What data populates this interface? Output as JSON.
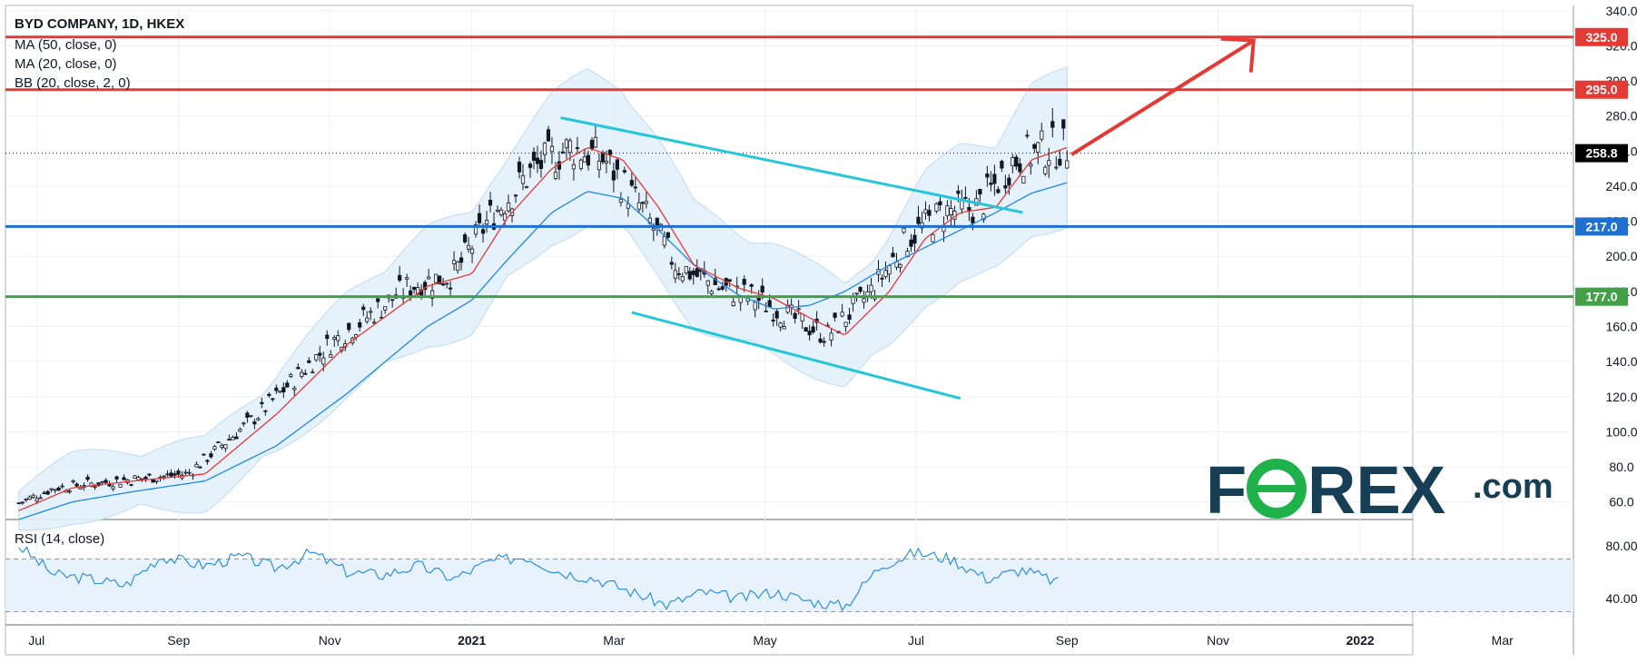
{
  "legend": {
    "title": "BYD COMPANY, 1D, HKEX",
    "ma50": "MA (50, close, 0)",
    "ma20": "MA (20, close, 0)",
    "bb": "BB (20, close, 2, 0)",
    "rsi": "RSI (14, close)"
  },
  "chart_data": [
    {
      "type": "line",
      "title": "BYD COMPANY, 1D, HKEX",
      "x_ticks": [
        "Jul",
        "Sep",
        "Nov",
        "2021",
        "Mar",
        "May",
        "Jul",
        "Sep",
        "Nov",
        "2022",
        "Mar"
      ],
      "y_ticks": [
        "340.0",
        "320.0",
        "300.0",
        "280.0",
        "260.0",
        "240.0",
        "220.0",
        "200.0",
        "180.0",
        "160.0",
        "140.0",
        "120.0",
        "100.0",
        "80.0",
        "60.0"
      ],
      "ylim": [
        50,
        343
      ],
      "horizontal_levels": [
        {
          "value": 325.0,
          "label": "325.0",
          "color": "#e53935"
        },
        {
          "value": 295.0,
          "label": "295.0",
          "color": "#e53935"
        },
        {
          "value": 217.0,
          "label": "217.0",
          "color": "#1e6fd0"
        },
        {
          "value": 177.0,
          "label": "177.0",
          "color": "#43a047"
        }
      ],
      "last_price": {
        "value": 258.8,
        "label": "258.8"
      },
      "series": [
        {
          "name": "MA (20, close, 0)",
          "color": "#e53935",
          "values": [
            [
              2020.49,
              55
            ],
            [
              2020.55,
              68
            ],
            [
              2020.62,
              72
            ],
            [
              2020.7,
              76
            ],
            [
              2020.78,
              110
            ],
            [
              2020.86,
              150
            ],
            [
              2020.95,
              183
            ],
            [
              2021.0,
              190
            ],
            [
              2021.04,
              222
            ],
            [
              2021.09,
              250
            ],
            [
              2021.13,
              262
            ],
            [
              2021.17,
              255
            ],
            [
              2021.21,
              228
            ],
            [
              2021.25,
              195
            ],
            [
              2021.3,
              182
            ],
            [
              2021.34,
              176
            ],
            [
              2021.38,
              165
            ],
            [
              2021.42,
              155
            ],
            [
              2021.47,
              180
            ],
            [
              2021.51,
              210
            ],
            [
              2021.55,
              225
            ],
            [
              2021.59,
              228
            ],
            [
              2021.63,
              255
            ],
            [
              2021.67,
              262
            ]
          ]
        },
        {
          "name": "MA (50, close, 0)",
          "color": "#1e88e5",
          "values": [
            [
              2020.49,
              50
            ],
            [
              2020.55,
              60
            ],
            [
              2020.62,
              66
            ],
            [
              2020.7,
              72
            ],
            [
              2020.78,
              92
            ],
            [
              2020.86,
              122
            ],
            [
              2020.95,
              160
            ],
            [
              2021.0,
              175
            ],
            [
              2021.04,
              198
            ],
            [
              2021.09,
              225
            ],
            [
              2021.13,
              237
            ],
            [
              2021.17,
              233
            ],
            [
              2021.21,
              215
            ],
            [
              2021.25,
              195
            ],
            [
              2021.3,
              178
            ],
            [
              2021.34,
              170
            ],
            [
              2021.38,
              172
            ],
            [
              2021.42,
              180
            ],
            [
              2021.47,
              195
            ],
            [
              2021.51,
              205
            ],
            [
              2021.55,
              215
            ],
            [
              2021.59,
              225
            ],
            [
              2021.63,
              236
            ],
            [
              2021.67,
              242
            ]
          ]
        },
        {
          "name": "RSI (14, close)",
          "color": "#1e88e5",
          "values": [
            [
              2020.49,
              80
            ],
            [
              2020.53,
              58
            ],
            [
              2020.57,
              55
            ],
            [
              2020.61,
              50
            ],
            [
              2020.65,
              72
            ],
            [
              2020.7,
              65
            ],
            [
              2020.74,
              72
            ],
            [
              2020.78,
              63
            ],
            [
              2020.82,
              75
            ],
            [
              2020.86,
              60
            ],
            [
              2020.9,
              58
            ],
            [
              2020.94,
              65
            ],
            [
              2020.98,
              55
            ],
            [
              2021.02,
              68
            ],
            [
              2021.06,
              72
            ],
            [
              2021.1,
              60
            ],
            [
              2021.14,
              55
            ],
            [
              2021.18,
              45
            ],
            [
              2021.22,
              35
            ],
            [
              2021.26,
              45
            ],
            [
              2021.3,
              40
            ],
            [
              2021.34,
              45
            ],
            [
              2021.38,
              38
            ],
            [
              2021.42,
              34
            ],
            [
              2021.46,
              65
            ],
            [
              2021.5,
              75
            ],
            [
              2021.54,
              70
            ],
            [
              2021.58,
              55
            ],
            [
              2021.62,
              62
            ],
            [
              2021.66,
              52
            ]
          ]
        }
      ]
    }
  ],
  "annotations": {
    "channel_upper_color": "#26c6da",
    "channel_lower_color": "#26c6da",
    "arrow_color": "#e53935"
  },
  "rsi_axis": {
    "y_ticks": [
      "80.00",
      "40.00"
    ]
  },
  "logo": {
    "brand": "F",
    "brand2": "REX",
    "suffix": ".com",
    "primary_color": "#163e54",
    "accent_color": "#1fb24a"
  }
}
